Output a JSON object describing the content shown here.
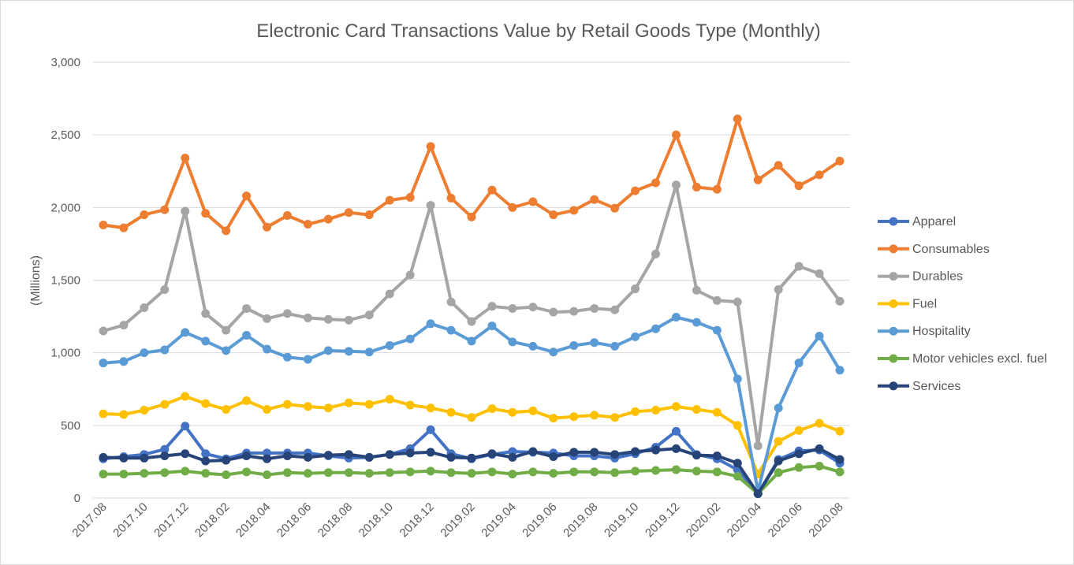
{
  "chart_data": {
    "type": "line",
    "title": "Electronic Card Transactions Value by Retail Goods Type (Monthly)",
    "xlabel": "",
    "ylabel": "(Millions)",
    "ylim": [
      0,
      3000
    ],
    "yticks": [
      "0",
      "500",
      "1,000",
      "1,500",
      "2,000",
      "2,500",
      "3,000"
    ],
    "ytick_values": [
      0,
      500,
      1000,
      1500,
      2000,
      2500,
      3000
    ],
    "grid": true,
    "legend_position": "right",
    "categories": [
      "2017.08",
      "2017.09",
      "2017.10",
      "2017.11",
      "2017.12",
      "2018.01",
      "2018.02",
      "2018.03",
      "2018.04",
      "2018.05",
      "2018.06",
      "2018.07",
      "2018.08",
      "2018.09",
      "2018.10",
      "2018.11",
      "2018.12",
      "2019.01",
      "2019.02",
      "2019.03",
      "2019.04",
      "2019.05",
      "2019.06",
      "2019.07",
      "2019.08",
      "2019.09",
      "2019.10",
      "2019.11",
      "2019.12",
      "2020.01",
      "2020.02",
      "2020.03",
      "2020.04",
      "2020.05",
      "2020.06",
      "2020.07",
      "2020.08"
    ],
    "xtick_labels": [
      "2017.08",
      "",
      "2017.10",
      "",
      "2017.12",
      "",
      "2018.02",
      "",
      "2018.04",
      "",
      "2018.06",
      "",
      "2018.08",
      "",
      "2018.10",
      "",
      "2018.12",
      "",
      "2019.02",
      "",
      "2019.04",
      "",
      "2019.06",
      "",
      "2019.08",
      "",
      "2019.10",
      "",
      "2019.12",
      "",
      "2020.02",
      "",
      "2020.04",
      "",
      "2020.06",
      "",
      "2020.08"
    ],
    "series": [
      {
        "name": "Apparel",
        "color": "#4472C4",
        "values": [
          270,
          285,
          300,
          335,
          495,
          305,
          270,
          310,
          310,
          310,
          310,
          290,
          275,
          280,
          300,
          340,
          470,
          305,
          270,
          300,
          320,
          315,
          310,
          290,
          290,
          275,
          305,
          350,
          460,
          300,
          270,
          195,
          30,
          265,
          325,
          330,
          240
        ]
      },
      {
        "name": "Consumables",
        "color": "#ED7D31",
        "values": [
          1880,
          1860,
          1950,
          1985,
          2340,
          1960,
          1840,
          2080,
          1865,
          1945,
          1885,
          1920,
          1965,
          1950,
          2050,
          2070,
          2420,
          2065,
          1935,
          2120,
          2000,
          2040,
          1950,
          1980,
          2055,
          1995,
          2115,
          2170,
          2500,
          2140,
          2125,
          2610,
          2190,
          2290,
          2150,
          2225,
          2320
        ]
      },
      {
        "name": "Durables",
        "color": "#A5A5A5",
        "values": [
          1150,
          1190,
          1310,
          1435,
          1975,
          1270,
          1155,
          1305,
          1235,
          1270,
          1240,
          1230,
          1225,
          1260,
          1405,
          1535,
          2015,
          1350,
          1215,
          1320,
          1305,
          1315,
          1280,
          1285,
          1305,
          1295,
          1440,
          1680,
          2155,
          1430,
          1360,
          1350,
          360,
          1435,
          1595,
          1545,
          1355
        ]
      },
      {
        "name": "Fuel",
        "color": "#FFC000",
        "values": [
          580,
          575,
          605,
          645,
          700,
          650,
          610,
          670,
          610,
          645,
          630,
          620,
          655,
          645,
          680,
          640,
          620,
          590,
          555,
          615,
          590,
          600,
          550,
          560,
          570,
          555,
          595,
          605,
          630,
          610,
          590,
          500,
          165,
          390,
          465,
          515,
          460
        ]
      },
      {
        "name": "Hospitality",
        "color": "#5B9BD5",
        "values": [
          930,
          940,
          1000,
          1020,
          1140,
          1080,
          1015,
          1120,
          1025,
          970,
          955,
          1015,
          1010,
          1005,
          1050,
          1095,
          1200,
          1155,
          1080,
          1185,
          1075,
          1045,
          1005,
          1050,
          1070,
          1045,
          1110,
          1165,
          1245,
          1210,
          1155,
          820,
          45,
          620,
          930,
          1115,
          880
        ]
      },
      {
        "name": "Motor vehicles excl. fuel",
        "color": "#70AD47",
        "values": [
          165,
          165,
          170,
          175,
          185,
          170,
          160,
          180,
          160,
          175,
          170,
          175,
          175,
          170,
          175,
          180,
          185,
          175,
          170,
          180,
          165,
          180,
          170,
          180,
          180,
          175,
          185,
          190,
          195,
          185,
          180,
          150,
          30,
          175,
          210,
          220,
          180
        ]
      },
      {
        "name": "Services",
        "color": "#264478",
        "values": [
          280,
          275,
          275,
          290,
          305,
          255,
          260,
          290,
          270,
          290,
          280,
          295,
          300,
          280,
          300,
          310,
          315,
          280,
          275,
          305,
          280,
          320,
          285,
          315,
          315,
          300,
          320,
          330,
          340,
          295,
          290,
          240,
          30,
          255,
          305,
          340,
          265
        ]
      }
    ]
  }
}
